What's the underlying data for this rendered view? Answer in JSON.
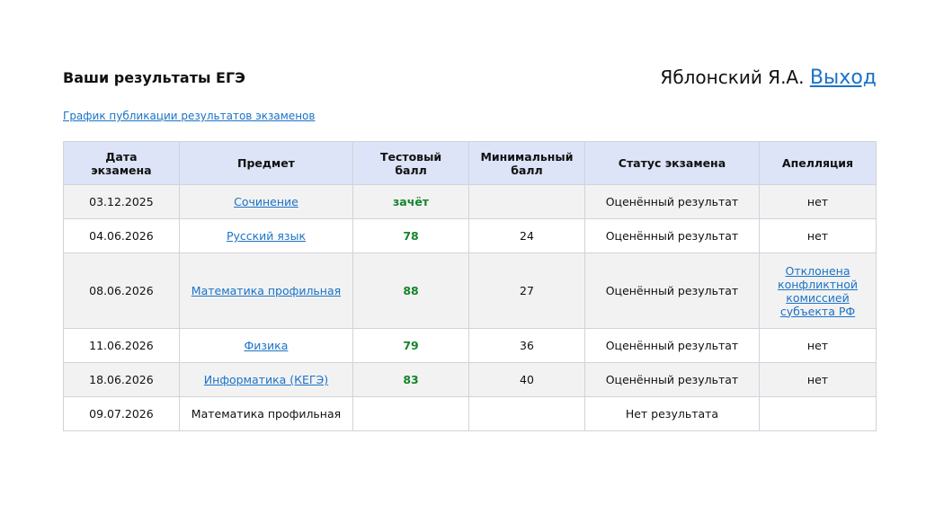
{
  "header": {
    "title": "Ваши результаты ЕГЭ",
    "user": "Яблонский Я.А.",
    "logout": "Выход"
  },
  "schedule_link": "График публикации результатов экзаменов",
  "table": {
    "columns": [
      "Дата экзамена",
      "Предмет",
      "Тестовый балл",
      "Минимальный балл",
      "Статус экзамена",
      "Апелляция"
    ],
    "rows": [
      [
        "03.12.2025",
        "Сочинение",
        "зачёт",
        null,
        "Оценённый результат",
        "нет"
      ],
      [
        "04.06.2026",
        "Русский язык",
        "78",
        "24",
        "Оценённый результат",
        "нет"
      ],
      [
        "08.06.2026",
        "Математика профильная",
        "88",
        "27",
        "Оценённый результат",
        "Отклонена конфликтной комиссией субъекта РФ"
      ],
      [
        "11.06.2026",
        "Физика",
        "79",
        "36",
        "Оценённый результат",
        "нет"
      ],
      [
        "18.06.2026",
        "Информатика (КЕГЭ)",
        "83",
        "40",
        "Оценённый результат",
        "нет"
      ],
      [
        "09.07.2026",
        "Математика профильная",
        null,
        null,
        "Нет результата",
        null
      ]
    ]
  }
}
